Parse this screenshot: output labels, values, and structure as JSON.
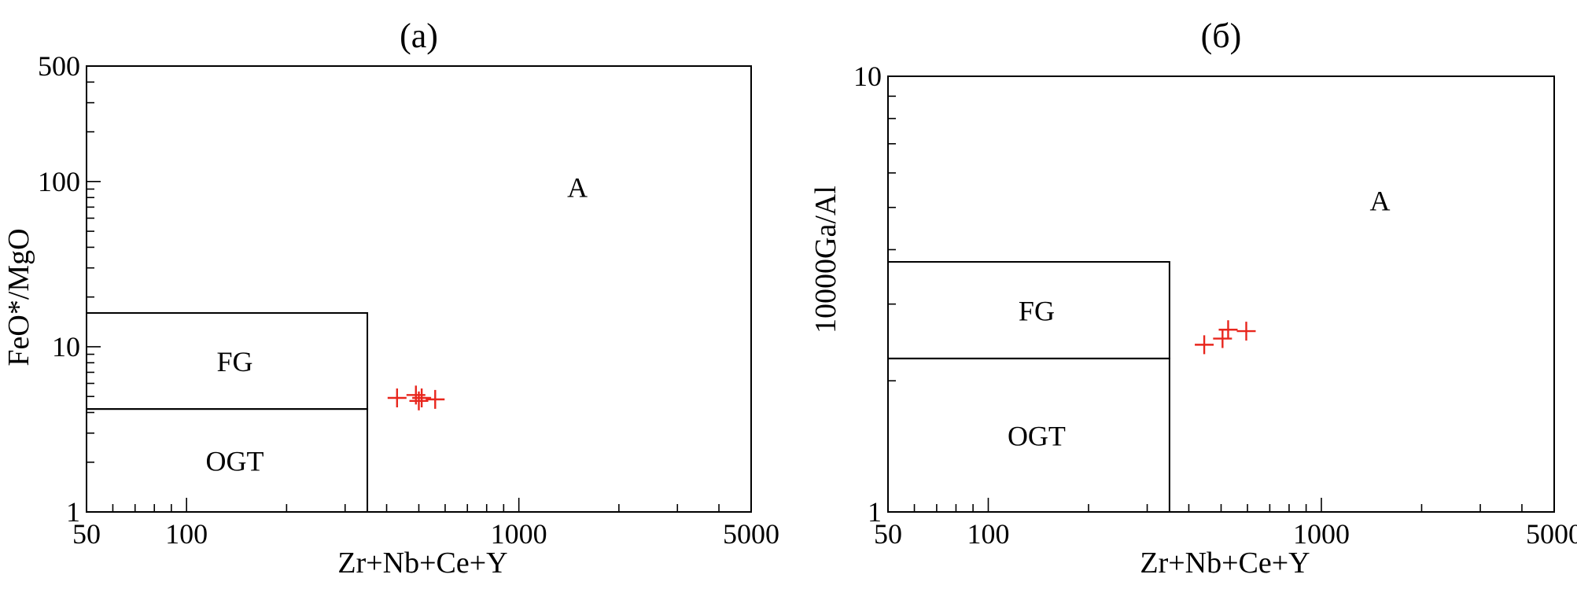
{
  "chart_data": [
    {
      "type": "scatter",
      "title": "(a)",
      "xlabel": "Zr+Nb+Ce+Y",
      "ylabel": "FeO*/MgO",
      "xscale": "log",
      "yscale": "log",
      "xlim": [
        50,
        5000
      ],
      "ylim": [
        1,
        500
      ],
      "x_tick_labels": [
        "50",
        "100",
        "1000",
        "5000"
      ],
      "y_tick_labels": [
        "1",
        "10",
        "100",
        "500"
      ],
      "grid": false,
      "marker": "plus",
      "marker_color": "#e8261d",
      "regions": [
        {
          "name": "FG",
          "polygon": [
            [
              50,
              4.2
            ],
            [
              350,
              4.2
            ],
            [
              350,
              16
            ],
            [
              50,
              16
            ]
          ]
        },
        {
          "name": "OGT",
          "polygon": [
            [
              50,
              1
            ],
            [
              350,
              1
            ],
            [
              350,
              4.2
            ],
            [
              50,
              4.2
            ]
          ]
        },
        {
          "name": "A",
          "label_at": [
            1500,
            93
          ]
        }
      ],
      "series": [
        {
          "x": [
            430,
            490,
            500,
            510,
            560
          ],
          "y": [
            4.9,
            5.1,
            4.7,
            4.9,
            4.8
          ]
        }
      ]
    },
    {
      "type": "scatter",
      "title": "(б)",
      "xlabel": "Zr+Nb+Ce+Y",
      "ylabel": "10000Ga/Al",
      "xscale": "log",
      "yscale": "log",
      "xlim": [
        50,
        5000
      ],
      "ylim": [
        1,
        10
      ],
      "x_tick_labels": [
        "50",
        "100",
        "1000",
        "5000"
      ],
      "y_tick_labels": [
        "1",
        "10"
      ],
      "grid": false,
      "marker": "plus",
      "marker_color": "#e8261d",
      "regions": [
        {
          "name": "FG",
          "polygon": [
            [
              50,
              2.25
            ],
            [
              350,
              2.25
            ],
            [
              350,
              3.75
            ],
            [
              50,
              3.75
            ]
          ]
        },
        {
          "name": "OGT",
          "polygon": [
            [
              50,
              1
            ],
            [
              350,
              1
            ],
            [
              350,
              2.25
            ],
            [
              50,
              2.25
            ]
          ]
        },
        {
          "name": "A",
          "label_at": [
            1500,
            5.2
          ]
        }
      ],
      "series": [
        {
          "x": [
            445,
            505,
            525,
            595
          ],
          "y": [
            2.42,
            2.5,
            2.62,
            2.6
          ]
        }
      ]
    }
  ]
}
